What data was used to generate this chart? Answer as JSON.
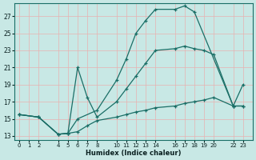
{
  "bg_color": "#c8e8e5",
  "line_color": "#1a6e66",
  "grid_color": "#e8b0b0",
  "xlabel": "Humidex (Indice chaleur)",
  "ylim": [
    12.5,
    28.5
  ],
  "xlim": [
    -0.5,
    24.0
  ],
  "yticks": [
    13,
    15,
    17,
    19,
    21,
    23,
    25,
    27
  ],
  "xticks": [
    0,
    1,
    2,
    4,
    5,
    6,
    7,
    8,
    10,
    11,
    12,
    13,
    14,
    16,
    17,
    18,
    19,
    20,
    22,
    23
  ],
  "curves": [
    {
      "x": [
        0,
        2,
        4,
        5,
        6,
        8,
        10,
        11,
        12,
        13,
        14,
        16,
        17,
        18,
        22,
        23
      ],
      "y": [
        15.5,
        15.2,
        13.2,
        13.3,
        15.0,
        16.0,
        19.5,
        22.0,
        25.0,
        26.5,
        27.8,
        27.8,
        28.2,
        27.5,
        16.5,
        16.5
      ]
    },
    {
      "x": [
        0,
        2,
        4,
        5,
        6,
        7,
        8,
        10,
        11,
        12,
        13,
        14,
        16,
        17,
        18,
        19,
        20,
        22,
        23
      ],
      "y": [
        15.5,
        15.2,
        13.2,
        13.3,
        21.0,
        17.5,
        15.2,
        17.0,
        18.5,
        20.0,
        21.5,
        23.0,
        23.2,
        23.5,
        23.2,
        23.0,
        22.5,
        16.5,
        19.0
      ]
    },
    {
      "x": [
        0,
        2,
        4,
        5,
        6,
        7,
        8,
        10,
        11,
        12,
        13,
        14,
        16,
        17,
        18,
        19,
        20,
        22,
        23
      ],
      "y": [
        15.5,
        15.2,
        13.2,
        13.3,
        13.5,
        14.2,
        14.8,
        15.2,
        15.5,
        15.8,
        16.0,
        16.3,
        16.5,
        16.8,
        17.0,
        17.2,
        17.5,
        16.5,
        16.5
      ]
    }
  ]
}
